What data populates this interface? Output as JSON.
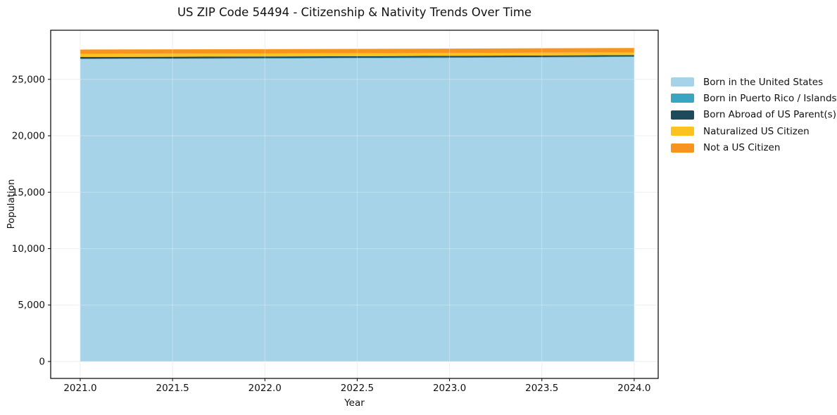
{
  "title": "US ZIP Code 54494 - Citizenship & Nativity Trends Over Time",
  "chart_data": {
    "type": "area",
    "stacked": true,
    "title": "US ZIP Code 54494 - Citizenship & Nativity Trends Over Time",
    "xlabel": "Year",
    "ylabel": "Population",
    "x": [
      2021,
      2022,
      2023,
      2024
    ],
    "series": [
      {
        "name": "Born in the United States",
        "color": "#a6d3e8",
        "values": [
          26790,
          26840,
          26900,
          26980
        ]
      },
      {
        "name": "Born in Puerto Rico / Islands",
        "color": "#3aa5c1",
        "values": [
          40,
          40,
          45,
          50
        ]
      },
      {
        "name": "Born Abroad of US Parent(s)",
        "color": "#1f4a5c",
        "values": [
          150,
          145,
          135,
          120
        ]
      },
      {
        "name": "Naturalized US Citizen",
        "color": "#fcc21f",
        "values": [
          280,
          270,
          260,
          240
        ]
      },
      {
        "name": "Not a US Citizen",
        "color": "#f7941f",
        "values": [
          380,
          380,
          385,
          390
        ]
      }
    ],
    "xticks": [
      2021.0,
      2021.5,
      2022.0,
      2022.5,
      2023.0,
      2023.5,
      2024.0
    ],
    "xtick_labels": [
      "2021.0",
      "2021.5",
      "2022.0",
      "2022.5",
      "2023.0",
      "2023.5",
      "2024.0"
    ],
    "yticks": [
      0,
      5000,
      10000,
      15000,
      20000,
      25000
    ],
    "ytick_labels": [
      "0",
      "5,000",
      "10,000",
      "15,000",
      "20,000",
      "25,000"
    ],
    "xlim": [
      2020.84,
      2024.13
    ],
    "ylim": [
      -1500,
      29350
    ],
    "grid": true,
    "legend_position": "right",
    "colors": {
      "spine": "#000000",
      "grid": "#e9e9e9",
      "text": "#111111",
      "background": "#ffffff"
    }
  }
}
